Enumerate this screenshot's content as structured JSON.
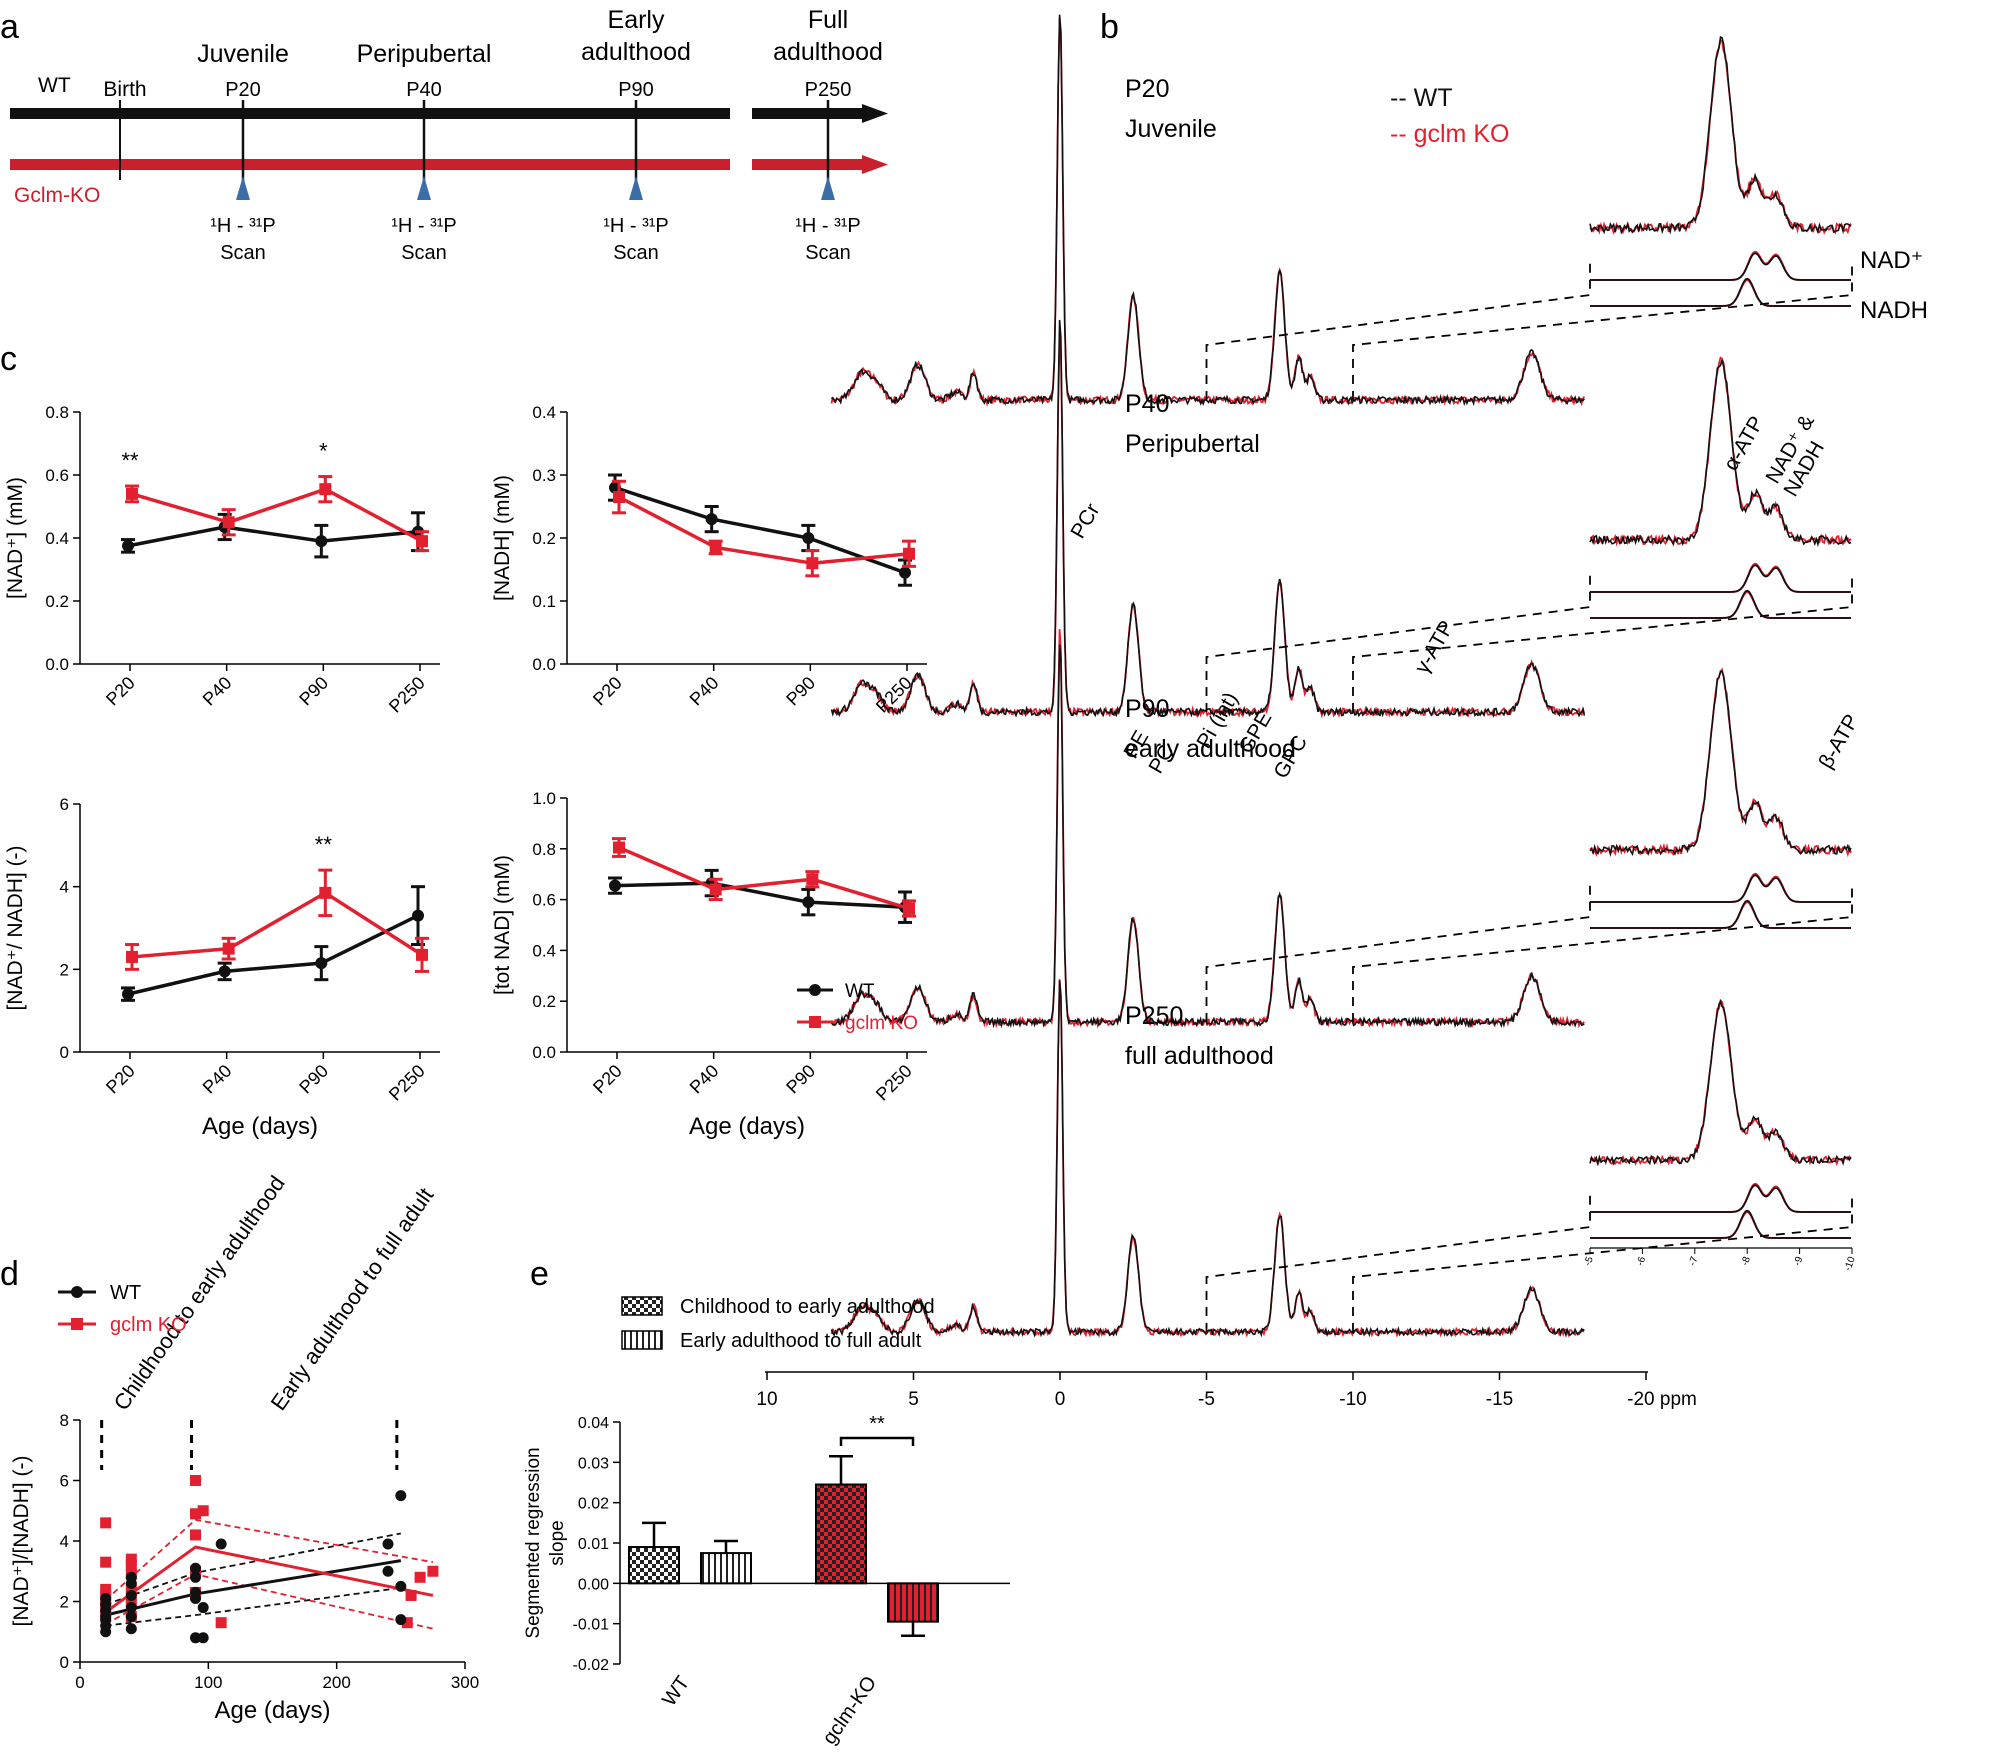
{
  "colors": {
    "wt": "#111111",
    "ko": "#e3202f",
    "axis": "#000000"
  },
  "panel_letters": {
    "a": "a",
    "b": "b",
    "c": "c",
    "d": "d",
    "e": "e"
  },
  "timeline": {
    "wt_label": "WT",
    "ko_label": "Gclm-KO",
    "birth": "Birth",
    "stages": [
      {
        "name": "Juvenile",
        "name2": "",
        "age": "P20",
        "scan_top": "¹H - ³¹P",
        "scan_bottom": "Scan"
      },
      {
        "name": "Peripubertal",
        "name2": "",
        "age": "P40",
        "scan_top": "¹H - ³¹P",
        "scan_bottom": "Scan"
      },
      {
        "name": "Early",
        "name2": "adulthood",
        "age": "P90",
        "scan_top": "¹H - ³¹P",
        "scan_bottom": "Scan"
      },
      {
        "name": "Full",
        "name2": "adulthood",
        "age": "P250",
        "scan_top": "¹H - ³¹P",
        "scan_bottom": "Scan"
      }
    ]
  },
  "chart_data": [
    {
      "id": "c1",
      "type": "line",
      "categories": [
        "P20",
        "P40",
        "P90",
        "P250"
      ],
      "ylabel": "[NAD⁺] (mM)",
      "ylim": [
        0,
        0.8
      ],
      "yticks": [
        "0.0",
        "0.2",
        "0.4",
        "0.6",
        "0.8"
      ],
      "series": [
        {
          "name": "WT",
          "values": [
            0.375,
            0.435,
            0.39,
            0.42
          ],
          "err": [
            0.02,
            0.04,
            0.05,
            0.06
          ]
        },
        {
          "name": "gclm KO",
          "values": [
            0.54,
            0.45,
            0.555,
            0.39
          ],
          "err": [
            0.025,
            0.04,
            0.04,
            0.03
          ]
        }
      ],
      "annotations": [
        {
          "category": "P20",
          "text": "**"
        },
        {
          "category": "P90",
          "text": "*"
        }
      ]
    },
    {
      "id": "c2",
      "type": "line",
      "categories": [
        "P20",
        "P40",
        "P90",
        "P250"
      ],
      "ylabel": "[NADH] (mM)",
      "ylim": [
        0,
        0.4
      ],
      "yticks": [
        "0.0",
        "0.1",
        "0.2",
        "0.3",
        "0.4"
      ],
      "series": [
        {
          "name": "WT",
          "values": [
            0.28,
            0.23,
            0.2,
            0.145
          ],
          "err": [
            0.02,
            0.02,
            0.02,
            0.02
          ]
        },
        {
          "name": "gclm KO",
          "values": [
            0.265,
            0.185,
            0.16,
            0.175
          ],
          "err": [
            0.025,
            0.01,
            0.02,
            0.02
          ]
        }
      ],
      "annotations": []
    },
    {
      "id": "c3",
      "type": "line",
      "categories": [
        "P20",
        "P40",
        "P90",
        "P250"
      ],
      "xlabel": "Age (days)",
      "ylabel": "[NAD⁺/ NADH] (-)",
      "ylim": [
        0,
        6
      ],
      "yticks": [
        "0",
        "2",
        "4",
        "6"
      ],
      "series": [
        {
          "name": "WT",
          "values": [
            1.4,
            1.95,
            2.15,
            3.3
          ],
          "err": [
            0.15,
            0.2,
            0.4,
            0.7
          ]
        },
        {
          "name": "gclm KO",
          "values": [
            2.3,
            2.5,
            3.85,
            2.35
          ],
          "err": [
            0.3,
            0.25,
            0.55,
            0.4
          ]
        }
      ],
      "annotations": [
        {
          "category": "P90",
          "text": "**"
        }
      ]
    },
    {
      "id": "c4",
      "type": "line",
      "categories": [
        "P20",
        "P40",
        "P90",
        "P250"
      ],
      "xlabel": "Age (days)",
      "ylabel": "[tot NAD] (mM)",
      "ylim": [
        0,
        1.0
      ],
      "yticks": [
        "0.0",
        "0.2",
        "0.4",
        "0.6",
        "0.8",
        "1.0"
      ],
      "series": [
        {
          "name": "WT",
          "values": [
            0.655,
            0.665,
            0.59,
            0.57
          ],
          "err": [
            0.03,
            0.05,
            0.05,
            0.06
          ]
        },
        {
          "name": "gclm KO",
          "values": [
            0.805,
            0.64,
            0.68,
            0.565
          ],
          "err": [
            0.035,
            0.04,
            0.03,
            0.03
          ]
        }
      ],
      "annotations": [],
      "legend": [
        "WT",
        "gclm KO"
      ]
    },
    {
      "id": "d",
      "type": "scatter",
      "xlabel": "Age (days)",
      "ylabel": "[NAD⁺]/[NADH] (-)",
      "xlim": [
        0,
        300
      ],
      "ylim": [
        0,
        8
      ],
      "xticks": [
        "0",
        "100",
        "200",
        "300"
      ],
      "yticks": [
        "0",
        "2",
        "4",
        "6",
        "8"
      ],
      "legend": [
        "WT",
        "gclm KO"
      ],
      "annotations": [
        "Childhood to early adulthood",
        "Early adulthood to full adult"
      ],
      "wt_points": [
        [
          20,
          1.0
        ],
        [
          20,
          1.2
        ],
        [
          20,
          1.4
        ],
        [
          20,
          1.5
        ],
        [
          20,
          1.7
        ],
        [
          20,
          1.9
        ],
        [
          20,
          2.1
        ],
        [
          40,
          1.1
        ],
        [
          40,
          1.5
        ],
        [
          40,
          1.8
        ],
        [
          40,
          2.2
        ],
        [
          40,
          2.6
        ],
        [
          40,
          2.8
        ],
        [
          90,
          0.8
        ],
        [
          90,
          2.1
        ],
        [
          90,
          2.3
        ],
        [
          90,
          2.8
        ],
        [
          90,
          3.1
        ],
        [
          96,
          0.8
        ],
        [
          96,
          1.8
        ],
        [
          110,
          3.9
        ],
        [
          240,
          3.0
        ],
        [
          240,
          3.9
        ],
        [
          250,
          1.4
        ],
        [
          250,
          2.5
        ],
        [
          250,
          5.5
        ]
      ],
      "ko_points": [
        [
          20,
          1.5
        ],
        [
          20,
          1.8
        ],
        [
          20,
          2.0
        ],
        [
          20,
          2.2
        ],
        [
          20,
          2.4
        ],
        [
          20,
          3.3
        ],
        [
          20,
          4.6
        ],
        [
          40,
          1.5
        ],
        [
          40,
          2.0
        ],
        [
          40,
          2.4
        ],
        [
          40,
          2.9
        ],
        [
          40,
          3.2
        ],
        [
          40,
          3.4
        ],
        [
          90,
          2.3
        ],
        [
          90,
          3.0
        ],
        [
          90,
          4.2
        ],
        [
          90,
          4.9
        ],
        [
          90,
          6.0
        ],
        [
          96,
          5.0
        ],
        [
          110,
          1.3
        ],
        [
          255,
          1.3
        ],
        [
          258,
          2.2
        ],
        [
          265,
          2.8
        ],
        [
          275,
          3.0
        ]
      ],
      "wt_fit": [
        [
          20,
          1.55
        ],
        [
          90,
          2.25
        ],
        [
          250,
          3.35
        ]
      ],
      "ko_fit": [
        [
          20,
          1.65
        ],
        [
          90,
          3.8
        ],
        [
          275,
          2.2
        ]
      ]
    },
    {
      "id": "e",
      "type": "bar",
      "categories": [
        "WT",
        "gclm-KO"
      ],
      "ylabel": "Segmented regression slope",
      "ylim": [
        -0.02,
        0.04
      ],
      "yticks": [
        "-0.02",
        "-0.01",
        "0.00",
        "0.01",
        "0.02",
        "0.03",
        "0.04"
      ],
      "series": [
        {
          "name": "Childhood to early adulthood",
          "values": [
            0.009,
            0.0245
          ],
          "err": [
            0.006,
            0.007
          ]
        },
        {
          "name": "Early adulthood to full adult",
          "values": [
            0.0075,
            -0.0095
          ],
          "err": [
            0.003,
            0.0035
          ]
        }
      ],
      "annotations": [
        {
          "text": "**"
        }
      ]
    },
    {
      "id": "b",
      "type": "line",
      "xlabel": "ppm",
      "xlim": [
        10,
        -20
      ],
      "xticks": [
        "10",
        "5",
        "0",
        "-5",
        "-10",
        "-15",
        "-20 ppm"
      ],
      "inset_xticks": [
        "-5",
        "-6",
        "-7",
        "-8",
        "-9",
        "-10"
      ],
      "legend": [
        "-- WT",
        "-- gclm KO"
      ],
      "fit_labels": [
        "NAD⁺",
        "NADH"
      ],
      "spectra": [
        {
          "age": "P20",
          "stage": "Juvenile"
        },
        {
          "age": "P40",
          "stage": "Peripubertal"
        },
        {
          "age": "P90",
          "stage": "early adulthood"
        },
        {
          "age": "P250",
          "stage": "full adulthood"
        }
      ],
      "peaks": [
        {
          "label": "PE",
          "ppm": 6.8
        },
        {
          "label": "PC",
          "ppm": 6.2
        },
        {
          "label": "Pi (int)",
          "ppm": 4.9
        },
        {
          "label": "GPE",
          "ppm": 3.5
        },
        {
          "label": "GPC",
          "ppm": 2.9
        },
        {
          "label": "PCr",
          "ppm": 0.0
        },
        {
          "label": "γ-ATP",
          "ppm": -2.5
        },
        {
          "label": "α-ATP",
          "ppm": -7.5
        },
        {
          "label": "NAD⁺ &",
          "ppm": -8.2
        },
        {
          "label": "NADH",
          "ppm": -8.2
        },
        {
          "label": "β-ATP",
          "ppm": -16.1
        }
      ]
    }
  ]
}
